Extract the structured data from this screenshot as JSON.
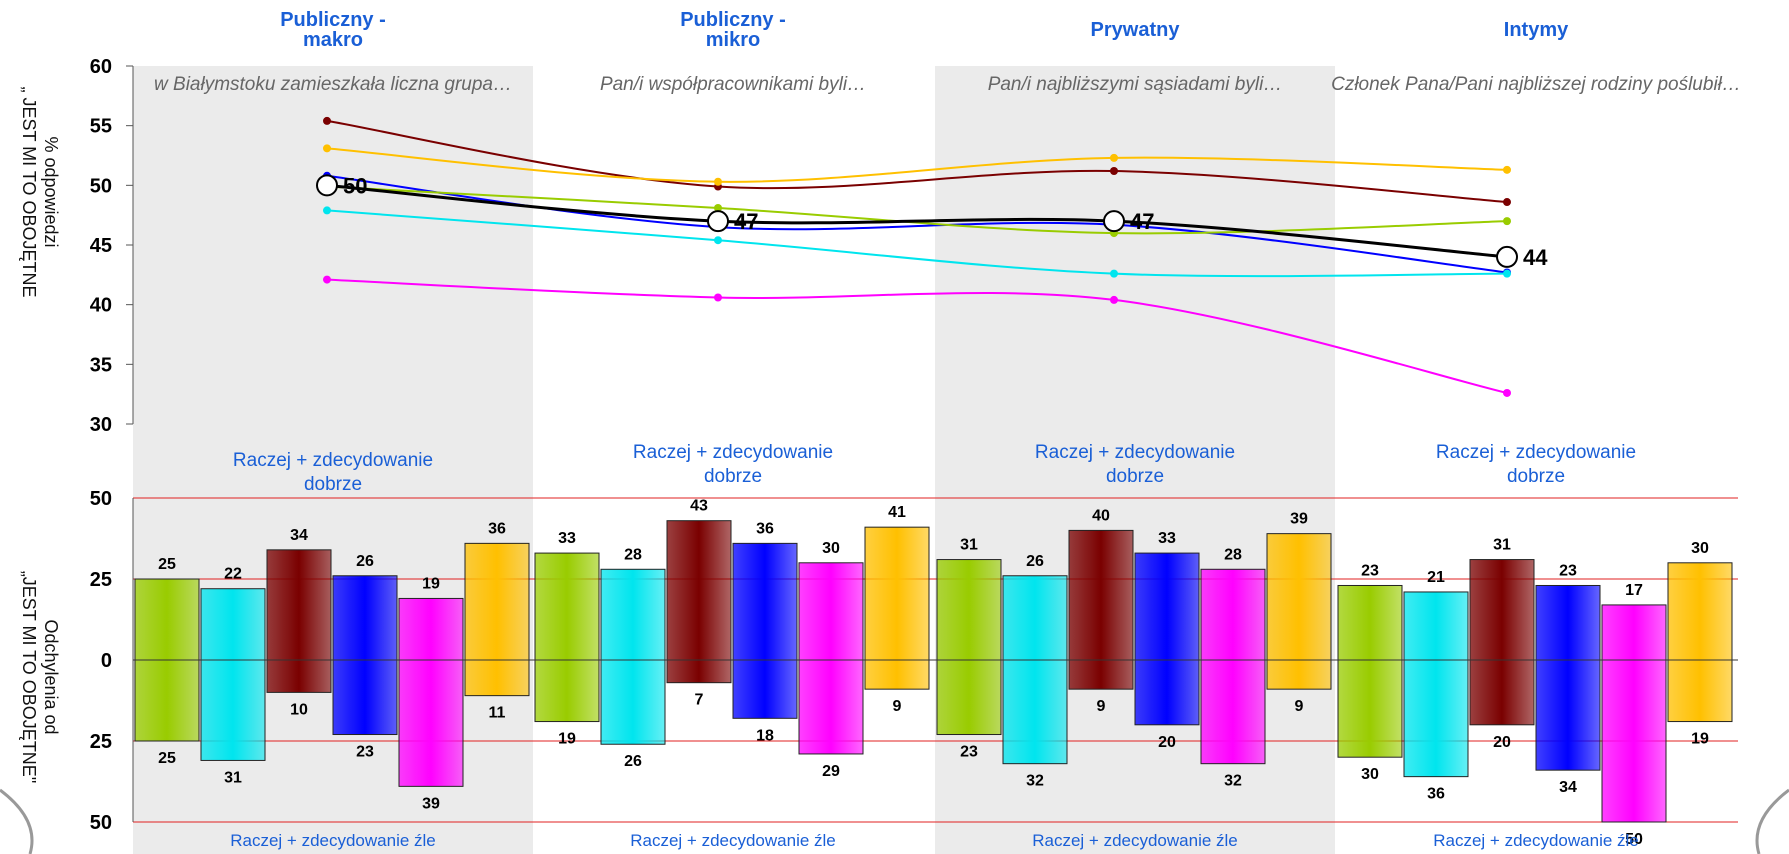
{
  "groups": [
    {
      "name": "Publiczny -\nmakro",
      "question": "w Białymstoku zamieszkała liczna grupa…",
      "good_label": "Raczej + zdecydowanie dobrze",
      "bad_label": "Raczej + zdecydowanie źle"
    },
    {
      "name": "Publiczny -\nmikro",
      "question": "Pan/i współpracownikami byli…",
      "good_label": "Raczej + zdecydowanie dobrze",
      "bad_label": "Raczej + zdecydowanie źle"
    },
    {
      "name": "Prywatny",
      "question": "Pan/i najbliższymi sąsiadami byli…",
      "good_label": "Raczej + zdecydowanie dobrze",
      "bad_label": "Raczej + zdecydowanie źle"
    },
    {
      "name": "Intymy",
      "question": "Członek Pana/Pani najbliższej rodziny poślubił…",
      "good_label": "Raczej + zdecydowanie dobrze",
      "bad_label": "Raczej + zdecydowanie źle"
    }
  ],
  "top_axis_label": {
    "line1": "% odpowiedzi",
    "line2": "„ JEST MI TO OBOJĘTNE"
  },
  "bottom_axis_label": {
    "line1": "Odchylenia od",
    "line2": "„JEST MI TO OBOJĘTNE\""
  },
  "chart_data": [
    {
      "type": "line",
      "ylim": [
        30,
        60
      ],
      "yticks": [
        30,
        35,
        40,
        45,
        50,
        55,
        60
      ],
      "series": [
        {
          "color": "#7a0000",
          "values": [
            55.4,
            49.9,
            51.2,
            48.6
          ]
        },
        {
          "color": "#ffc000",
          "values": [
            53.1,
            50.3,
            52.3,
            51.3
          ]
        },
        {
          "color": "#0000ff",
          "values": [
            50.8,
            46.5,
            46.7,
            42.7
          ]
        },
        {
          "color": "#99cc00",
          "values": [
            49.9,
            48.1,
            46.0,
            47.0
          ]
        },
        {
          "color": "#00e5ee",
          "values": [
            47.9,
            45.4,
            42.6,
            42.6
          ]
        },
        {
          "color": "#ff00ff",
          "values": [
            42.1,
            40.6,
            40.4,
            32.6
          ]
        },
        {
          "color": "#000000",
          "values": [
            50,
            47,
            47,
            44
          ],
          "labels": [
            "50",
            "47",
            "47",
            "44"
          ],
          "average": true
        }
      ]
    },
    {
      "type": "bar",
      "ylim": [
        -50,
        50
      ],
      "yticks": [
        50,
        25,
        0,
        25,
        50
      ],
      "colors": [
        "#99cc00",
        "#00e5ee",
        "#7a0000",
        "#0000ff",
        "#ff00ff",
        "#ffc000"
      ],
      "positive": [
        [
          25,
          22,
          34,
          26,
          19,
          36
        ],
        [
          33,
          28,
          43,
          36,
          30,
          41
        ],
        [
          31,
          26,
          40,
          33,
          28,
          39
        ],
        [
          23,
          21,
          31,
          23,
          17,
          30
        ]
      ],
      "negative": [
        [
          25,
          31,
          10,
          23,
          39,
          11
        ],
        [
          19,
          26,
          7,
          18,
          29,
          9
        ],
        [
          23,
          32,
          9,
          20,
          32,
          9
        ],
        [
          30,
          36,
          20,
          34,
          50,
          19
        ]
      ]
    }
  ]
}
